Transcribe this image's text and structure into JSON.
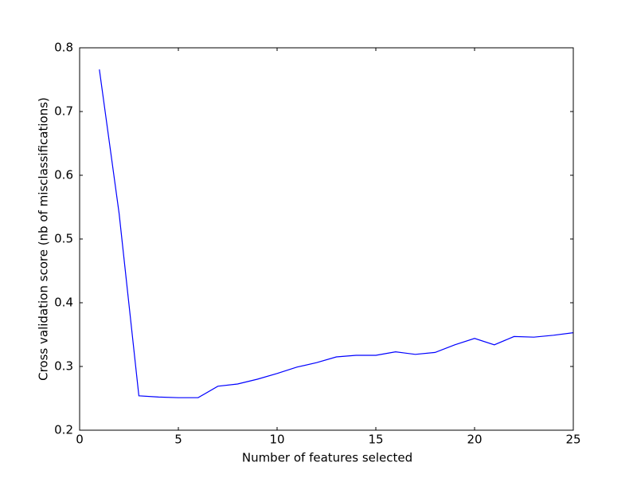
{
  "chart_data": {
    "type": "line",
    "xlabel": "Number of features selected",
    "ylabel": "Cross validation score (nb of misclassifications)",
    "x": [
      1,
      2,
      3,
      4,
      5,
      6,
      7,
      8,
      9,
      10,
      11,
      12,
      13,
      14,
      15,
      16,
      17,
      18,
      19,
      20,
      21,
      22,
      23,
      24,
      25
    ],
    "series": [
      {
        "color": "#0000ff",
        "values": [
          0.766,
          0.54,
          0.254,
          0.252,
          0.251,
          0.251,
          0.269,
          0.2725,
          0.28,
          0.289,
          0.299,
          0.306,
          0.315,
          0.3175,
          0.3175,
          0.323,
          0.319,
          0.322,
          0.334,
          0.344,
          0.334,
          0.347,
          0.346,
          0.349,
          0.353
        ]
      }
    ],
    "xlim": [
      0,
      25
    ],
    "xticks": [
      0,
      5,
      10,
      15,
      20,
      25
    ],
    "ylim": [
      0.2,
      0.8
    ],
    "yticks": [
      0.2,
      0.3,
      0.4,
      0.5,
      0.6,
      0.7,
      0.8
    ],
    "grid": false
  }
}
